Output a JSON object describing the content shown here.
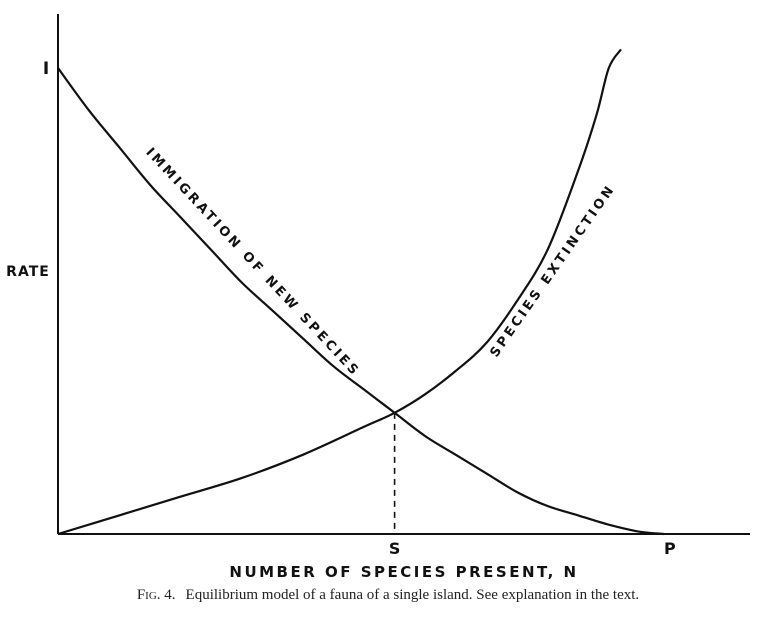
{
  "chart_data": {
    "type": "line",
    "title": "",
    "xlabel": "NUMBER OF SPECIES PRESENT, N",
    "ylabel": "RATE",
    "y_tick_labels": {
      "I": 1.0
    },
    "x_tick_labels": {
      "S": 0.55,
      "P": 0.99
    },
    "xlim": [
      0,
      1.05
    ],
    "ylim": [
      0,
      1.05
    ],
    "grid": false,
    "legend": "none",
    "series": [
      {
        "name": "IMMIGRATION OF NEW SPECIES",
        "x": [
          0,
          0.05,
          0.1,
          0.15,
          0.2,
          0.25,
          0.3,
          0.35,
          0.4,
          0.45,
          0.5,
          0.55,
          0.6,
          0.65,
          0.7,
          0.75,
          0.8,
          0.85,
          0.9,
          0.95,
          0.99
        ],
        "y": [
          1.0,
          0.91,
          0.83,
          0.75,
          0.68,
          0.61,
          0.54,
          0.48,
          0.42,
          0.36,
          0.31,
          0.26,
          0.21,
          0.17,
          0.13,
          0.09,
          0.06,
          0.04,
          0.02,
          0.005,
          0.0
        ]
      },
      {
        "name": "SPECIES EXTINCTION",
        "x": [
          0,
          0.1,
          0.2,
          0.3,
          0.4,
          0.5,
          0.55,
          0.6,
          0.65,
          0.7,
          0.75,
          0.8,
          0.85,
          0.88,
          0.9,
          0.92
        ],
        "y": [
          0.0,
          0.04,
          0.08,
          0.12,
          0.17,
          0.23,
          0.26,
          0.3,
          0.35,
          0.41,
          0.5,
          0.61,
          0.78,
          0.9,
          1.0,
          1.04
        ]
      }
    ],
    "equilibrium": {
      "label": "S",
      "x": 0.55,
      "y": 0.26
    }
  },
  "caption": {
    "label": "Fig. 4.",
    "text": "Equilibrium model of a fauna of a single island. See explanation in the text."
  }
}
